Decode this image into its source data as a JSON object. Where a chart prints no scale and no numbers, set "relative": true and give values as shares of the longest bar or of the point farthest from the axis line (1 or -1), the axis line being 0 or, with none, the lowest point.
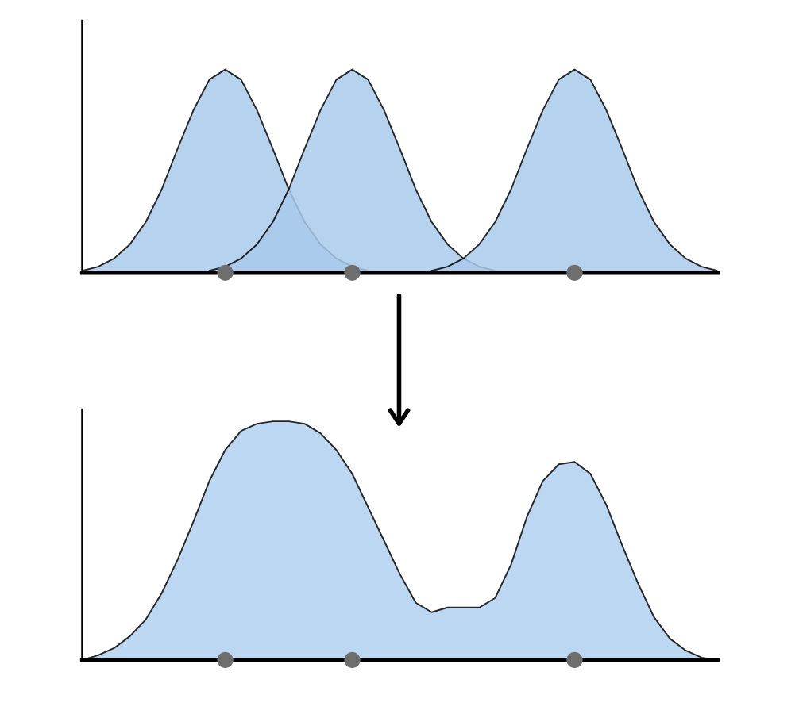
{
  "chart_data": [
    {
      "type": "area",
      "relative": true,
      "categories": [
        null,
        null,
        null,
        null,
        null,
        null,
        null,
        null,
        null,
        null,
        null,
        null,
        null,
        null,
        null,
        null,
        null,
        null,
        null,
        null,
        null,
        null,
        null,
        null,
        null,
        null,
        null,
        null,
        null,
        null,
        null,
        null,
        null,
        null,
        null,
        null,
        null,
        null,
        null,
        null,
        null
      ],
      "series": [
        {
          "color": "#a9cbec",
          "values": [
            0.01,
            0.03,
            0.07,
            0.14,
            0.25,
            0.41,
            0.61,
            0.8,
            0.95,
            1,
            0.95,
            0.8,
            0.61,
            0.41,
            0.25,
            0.14,
            0.07,
            0.03,
            0.01,
            null,
            null,
            null,
            null,
            null,
            null,
            null,
            null,
            null,
            null,
            null,
            null,
            null,
            null,
            null,
            null,
            null,
            null,
            null,
            null,
            null,
            null
          ]
        },
        {
          "color": "#a9cbec",
          "values": [
            null,
            null,
            null,
            null,
            null,
            null,
            null,
            null,
            0.01,
            0.03,
            0.07,
            0.14,
            0.25,
            0.41,
            0.61,
            0.8,
            0.95,
            1,
            0.95,
            0.8,
            0.61,
            0.41,
            0.25,
            0.14,
            0.07,
            0.03,
            0.01,
            null,
            null,
            null,
            null,
            null,
            null,
            null,
            null,
            null,
            null,
            null,
            null,
            null,
            null
          ]
        },
        {
          "color": "#a9cbec",
          "values": [
            null,
            null,
            null,
            null,
            null,
            null,
            null,
            null,
            null,
            null,
            null,
            null,
            null,
            null,
            null,
            null,
            null,
            null,
            null,
            null,
            null,
            null,
            0.01,
            0.03,
            0.07,
            0.14,
            0.25,
            0.41,
            0.61,
            0.8,
            0.95,
            1,
            0.95,
            0.8,
            0.61,
            0.41,
            0.25,
            0.14,
            0.07,
            0.03,
            0.01
          ]
        }
      ]
    },
    {
      "type": "area",
      "relative": true,
      "categories": [
        null,
        null,
        null,
        null,
        null,
        null,
        null,
        null,
        null,
        null,
        null,
        null,
        null,
        null,
        null,
        null,
        null,
        null,
        null,
        null,
        null,
        null,
        null,
        null,
        null,
        null,
        null,
        null,
        null,
        null,
        null,
        null,
        null,
        null,
        null,
        null,
        null,
        null,
        null,
        null,
        null
      ],
      "series": [
        {
          "color": "#b0d1ef",
          "values": [
            0,
            0.02,
            0.05,
            0.1,
            0.17,
            0.28,
            0.42,
            0.58,
            0.75,
            0.88,
            0.96,
            0.99,
            1,
            1,
            0.99,
            0.95,
            0.88,
            0.78,
            0.64,
            0.5,
            0.36,
            0.24,
            0.2,
            0.22,
            0.22,
            0.22,
            0.26,
            0.4,
            0.6,
            0.75,
            0.82,
            0.83,
            0.78,
            0.65,
            0.48,
            0.32,
            0.18,
            0.09,
            0.04,
            0.01,
            0
          ]
        }
      ]
    }
  ]
}
